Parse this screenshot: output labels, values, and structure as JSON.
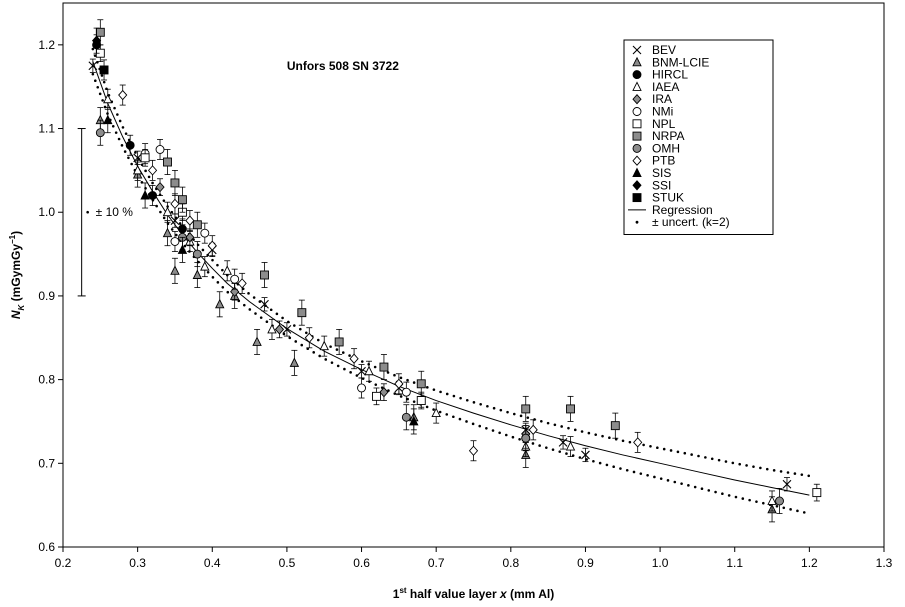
{
  "chart_data": {
    "type": "scatter",
    "title": "Unfors 508 SN 3722",
    "xlabel": {
      "prefix": "1",
      "sup": "st",
      "text": " half value layer ",
      "var": "x",
      "unit": " (mm Al)"
    },
    "ylabel": {
      "var": "N",
      "sub": "K",
      "unit": " (mGymGy",
      "sup": "−1",
      "close": ")"
    },
    "xlim": [
      0.2,
      1.3
    ],
    "ylim": [
      0.6,
      1.25
    ],
    "x_ticks": [
      "0.2",
      "0.3",
      "0.4",
      "0.5",
      "0.6",
      "0.7",
      "0.8",
      "0.9",
      "1.0",
      "1.1",
      "1.2",
      "1.3"
    ],
    "y_ticks": [
      "0.6",
      "0.7",
      "0.8",
      "0.9",
      "1.0",
      "1.1",
      "1.2"
    ],
    "grid": false,
    "legend_position": "top-right",
    "annotation": {
      "label": "± 10 %",
      "center": 1.0,
      "low": 0.9,
      "high": 1.1,
      "x": 0.225
    },
    "regression": {
      "name": "Regression",
      "x": [
        0.24,
        0.26,
        0.28,
        0.3,
        0.32,
        0.34,
        0.36,
        0.38,
        0.4,
        0.42,
        0.45,
        0.5,
        0.55,
        0.6,
        0.65,
        0.7,
        0.75,
        0.8,
        0.85,
        0.9,
        0.95,
        1.0,
        1.05,
        1.1,
        1.15,
        1.2
      ],
      "y": [
        1.18,
        1.13,
        1.09,
        1.055,
        1.025,
        0.997,
        0.973,
        0.952,
        0.933,
        0.915,
        0.893,
        0.861,
        0.834,
        0.812,
        0.792,
        0.775,
        0.76,
        0.746,
        0.733,
        0.721,
        0.71,
        0.7,
        0.69,
        0.68,
        0.671,
        0.662
      ]
    },
    "uncertainty": {
      "name": "± uncert. (k=2)",
      "x": [
        0.24,
        0.26,
        0.28,
        0.3,
        0.32,
        0.34,
        0.36,
        0.38,
        0.4,
        0.42,
        0.45,
        0.5,
        0.55,
        0.6,
        0.65,
        0.7,
        0.75,
        0.8,
        0.85,
        0.9,
        0.95,
        1.0,
        1.05,
        1.1,
        1.15,
        1.2
      ],
      "upper": [
        1.195,
        1.143,
        1.102,
        1.066,
        1.035,
        1.007,
        0.983,
        0.962,
        0.943,
        0.925,
        0.902,
        0.87,
        0.843,
        0.822,
        0.803,
        0.787,
        0.773,
        0.76,
        0.748,
        0.737,
        0.727,
        0.718,
        0.709,
        0.7,
        0.692,
        0.685
      ],
      "lower": [
        1.165,
        1.117,
        1.078,
        1.044,
        1.015,
        0.987,
        0.963,
        0.942,
        0.923,
        0.905,
        0.884,
        0.852,
        0.825,
        0.802,
        0.781,
        0.763,
        0.747,
        0.732,
        0.718,
        0.705,
        0.693,
        0.682,
        0.671,
        0.66,
        0.65,
        0.64
      ]
    },
    "series": [
      {
        "name": "BEV",
        "marker": "cross",
        "err": 0.008,
        "points": [
          [
            0.24,
            1.175
          ],
          [
            0.3,
            1.065
          ],
          [
            0.35,
            0.99
          ],
          [
            0.4,
            0.955
          ],
          [
            0.47,
            0.89
          ],
          [
            0.5,
            0.86
          ],
          [
            0.6,
            0.81
          ],
          [
            0.65,
            0.79
          ],
          [
            0.68,
            0.775
          ],
          [
            0.82,
            0.74
          ],
          [
            0.87,
            0.725
          ],
          [
            0.9,
            0.71
          ],
          [
            1.17,
            0.675
          ]
        ]
      },
      {
        "name": "BNM-LCIE",
        "marker": "triangle-gray",
        "err": 0.015,
        "points": [
          [
            0.25,
            1.11
          ],
          [
            0.3,
            1.045
          ],
          [
            0.34,
            0.975
          ],
          [
            0.35,
            0.93
          ],
          [
            0.38,
            0.925
          ],
          [
            0.41,
            0.89
          ],
          [
            0.43,
            0.9
          ],
          [
            0.46,
            0.845
          ],
          [
            0.51,
            0.82
          ],
          [
            0.67,
            0.755
          ],
          [
            0.82,
            0.71
          ],
          [
            1.15,
            0.645
          ]
        ]
      },
      {
        "name": "HIRCL",
        "marker": "circle-black",
        "err": 0.012,
        "points": [
          [
            0.245,
            1.2
          ],
          [
            0.29,
            1.08
          ],
          [
            0.32,
            1.02
          ],
          [
            0.36,
            0.98
          ]
        ]
      },
      {
        "name": "IAEA",
        "marker": "triangle-open",
        "err": 0.012,
        "points": [
          [
            0.26,
            1.135
          ],
          [
            0.3,
            1.05
          ],
          [
            0.34,
            1.0
          ],
          [
            0.37,
            0.965
          ],
          [
            0.39,
            0.935
          ],
          [
            0.42,
            0.93
          ],
          [
            0.48,
            0.86
          ],
          [
            0.55,
            0.84
          ],
          [
            0.61,
            0.81
          ],
          [
            0.7,
            0.76
          ],
          [
            0.82,
            0.72
          ],
          [
            0.88,
            0.72
          ],
          [
            1.15,
            0.655
          ]
        ]
      },
      {
        "name": "IRA",
        "marker": "diamond-gray",
        "err": 0.01,
        "points": [
          [
            0.33,
            1.03
          ],
          [
            0.37,
            0.97
          ],
          [
            0.43,
            0.905
          ],
          [
            0.49,
            0.86
          ],
          [
            0.63,
            0.785
          ],
          [
            0.82,
            0.735
          ]
        ]
      },
      {
        "name": "NMi",
        "marker": "circle-open",
        "err": 0.012,
        "points": [
          [
            0.31,
            1.07
          ],
          [
            0.33,
            1.075
          ],
          [
            0.35,
            0.965
          ],
          [
            0.39,
            0.975
          ],
          [
            0.43,
            0.92
          ],
          [
            0.6,
            0.79
          ],
          [
            0.66,
            0.785
          ],
          [
            0.82,
            0.73
          ]
        ]
      },
      {
        "name": "NPL",
        "marker": "square-open",
        "err": 0.01,
        "points": [
          [
            0.25,
            1.19
          ],
          [
            0.31,
            1.065
          ],
          [
            0.36,
            1.0
          ],
          [
            0.62,
            0.78
          ],
          [
            0.68,
            0.775
          ],
          [
            1.21,
            0.665
          ]
        ]
      },
      {
        "name": "NRPA",
        "marker": "square-gray",
        "err": 0.015,
        "points": [
          [
            0.25,
            1.215
          ],
          [
            0.34,
            1.06
          ],
          [
            0.35,
            1.035
          ],
          [
            0.36,
            1.015
          ],
          [
            0.38,
            0.985
          ],
          [
            0.47,
            0.925
          ],
          [
            0.52,
            0.88
          ],
          [
            0.57,
            0.845
          ],
          [
            0.63,
            0.815
          ],
          [
            0.68,
            0.795
          ],
          [
            0.82,
            0.765
          ],
          [
            0.88,
            0.765
          ],
          [
            0.94,
            0.745
          ]
        ]
      },
      {
        "name": "OMH",
        "marker": "circle-gray",
        "err": 0.015,
        "points": [
          [
            0.25,
            1.095
          ],
          [
            0.36,
            0.97
          ],
          [
            0.38,
            0.95
          ],
          [
            0.66,
            0.755
          ],
          [
            0.82,
            0.73
          ],
          [
            1.16,
            0.655
          ]
        ]
      },
      {
        "name": "PTB",
        "marker": "diamond-open",
        "err": 0.012,
        "points": [
          [
            0.28,
            1.14
          ],
          [
            0.32,
            1.05
          ],
          [
            0.35,
            1.01
          ],
          [
            0.37,
            0.99
          ],
          [
            0.4,
            0.96
          ],
          [
            0.44,
            0.915
          ],
          [
            0.53,
            0.85
          ],
          [
            0.59,
            0.825
          ],
          [
            0.65,
            0.795
          ],
          [
            0.75,
            0.715
          ],
          [
            0.83,
            0.74
          ],
          [
            0.97,
            0.725
          ]
        ]
      },
      {
        "name": "SIS",
        "marker": "triangle-black",
        "err": 0.015,
        "points": [
          [
            0.26,
            1.11
          ],
          [
            0.31,
            1.02
          ],
          [
            0.36,
            0.955
          ],
          [
            0.67,
            0.75
          ]
        ]
      },
      {
        "name": "SSI",
        "marker": "diamond-black",
        "err": 0.015,
        "points": [
          [
            0.245,
            1.205
          ]
        ]
      },
      {
        "name": "STUK",
        "marker": "square-black",
        "err": 0.012,
        "points": [
          [
            0.255,
            1.17
          ]
        ]
      }
    ]
  }
}
